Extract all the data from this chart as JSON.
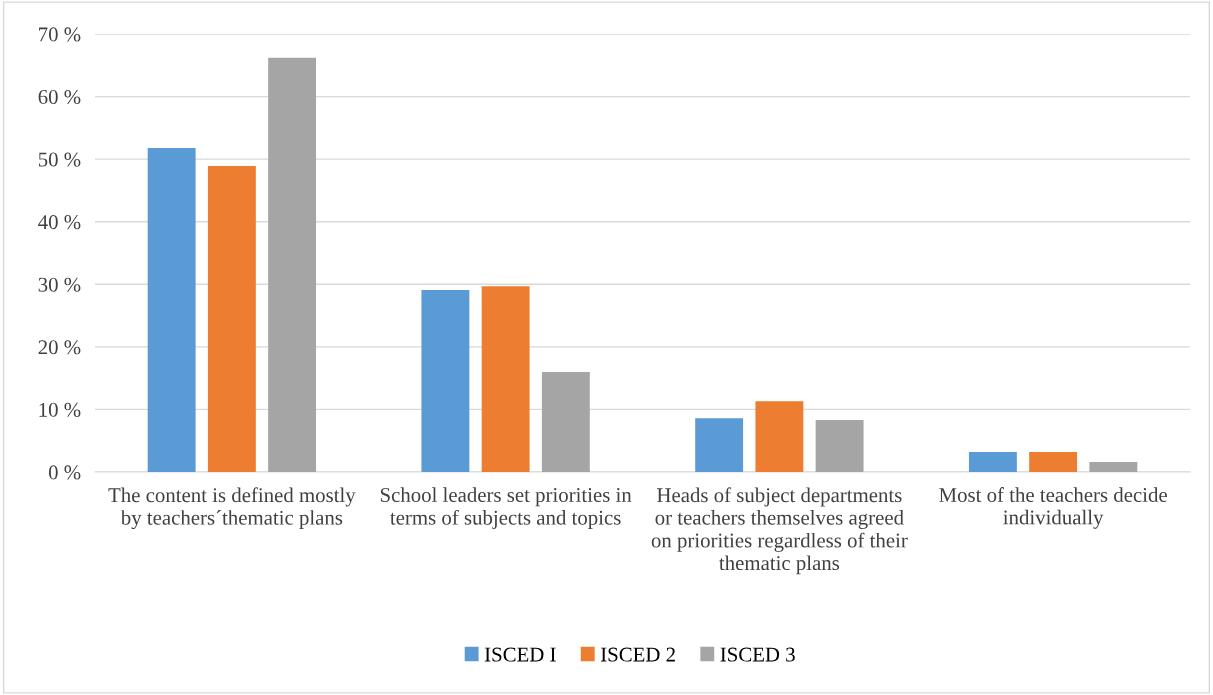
{
  "chart_data": {
    "type": "bar",
    "categories": [
      "The content is defined mostly by teachers´thematic plans",
      "School leaders set priorities in terms of subjects and topics",
      "Heads of subject departments or teachers themselves agreed on priorities regardless of their thematic plans",
      "Most of the teachers decide individually"
    ],
    "series": [
      {
        "name": "ISCED I",
        "color": "#5b9bd5",
        "values": [
          51.8,
          29.1,
          8.6,
          3.2
        ]
      },
      {
        "name": "ISCED 2",
        "color": "#ed7d31",
        "values": [
          48.9,
          29.7,
          11.3,
          3.2
        ]
      },
      {
        "name": "ISCED 3",
        "color": "#a5a5a5",
        "values": [
          66.2,
          16.0,
          8.3,
          1.6
        ]
      }
    ],
    "ylim": [
      0,
      70
    ],
    "yticks": [
      {
        "value": 0,
        "label": "0 %"
      },
      {
        "value": 10,
        "label": "10 %"
      },
      {
        "value": 20,
        "label": "20 %"
      },
      {
        "value": 30,
        "label": "30 %"
      },
      {
        "value": 40,
        "label": "40 %"
      },
      {
        "value": 50,
        "label": "50 %"
      },
      {
        "value": 60,
        "label": "60 %"
      },
      {
        "value": 70,
        "label": "70 %"
      }
    ],
    "grid": "y",
    "legend": "bottom"
  }
}
